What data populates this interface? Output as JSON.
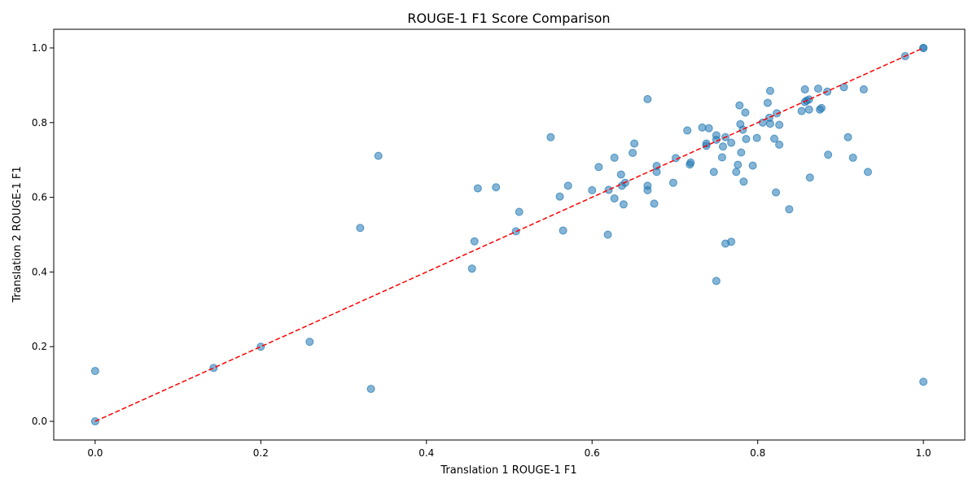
{
  "chart_data": {
    "type": "scatter",
    "title": "ROUGE-1 F1 Score Comparison",
    "xlabel": "Translation 1 ROUGE-1 F1",
    "ylabel": "Translation 2 ROUGE-1 F1",
    "xlim": [
      -0.05,
      1.05
    ],
    "ylim": [
      -0.05,
      1.05
    ],
    "xticks": [
      0.0,
      0.2,
      0.4,
      0.6,
      0.8,
      1.0
    ],
    "yticks": [
      0.0,
      0.2,
      0.4,
      0.6,
      0.8,
      1.0
    ],
    "xtick_labels": [
      "0.0",
      "0.2",
      "0.4",
      "0.6",
      "0.8",
      "1.0"
    ],
    "ytick_labels": [
      "0.0",
      "0.2",
      "0.4",
      "0.6",
      "0.8",
      "1.0"
    ],
    "grid": false,
    "legend": "none",
    "point_color": "#1f77b4",
    "reference_line": {
      "style": "dashed",
      "color": "#ff0000",
      "from": [
        0,
        0
      ],
      "to": [
        1,
        1
      ]
    },
    "points": [
      [
        0.0,
        0.0
      ],
      [
        0.0,
        0.135
      ],
      [
        0.143,
        0.143
      ],
      [
        0.2,
        0.2
      ],
      [
        0.259,
        0.213
      ],
      [
        0.32,
        0.518
      ],
      [
        0.333,
        0.087
      ],
      [
        0.342,
        0.711
      ],
      [
        0.455,
        0.409
      ],
      [
        0.458,
        0.482
      ],
      [
        0.462,
        0.624
      ],
      [
        0.484,
        0.627
      ],
      [
        0.508,
        0.509
      ],
      [
        0.512,
        0.561
      ],
      [
        0.55,
        0.761
      ],
      [
        0.561,
        0.602
      ],
      [
        0.565,
        0.511
      ],
      [
        0.571,
        0.631
      ],
      [
        0.6,
        0.619
      ],
      [
        0.608,
        0.681
      ],
      [
        0.619,
        0.5
      ],
      [
        0.62,
        0.62
      ],
      [
        0.627,
        0.706
      ],
      [
        0.627,
        0.597
      ],
      [
        0.635,
        0.661
      ],
      [
        0.636,
        0.631
      ],
      [
        0.638,
        0.581
      ],
      [
        0.64,
        0.639
      ],
      [
        0.649,
        0.719
      ],
      [
        0.651,
        0.744
      ],
      [
        0.667,
        0.863
      ],
      [
        0.667,
        0.631
      ],
      [
        0.667,
        0.619
      ],
      [
        0.675,
        0.583
      ],
      [
        0.678,
        0.684
      ],
      [
        0.678,
        0.668
      ],
      [
        0.698,
        0.639
      ],
      [
        0.701,
        0.705
      ],
      [
        0.715,
        0.779
      ],
      [
        0.718,
        0.688
      ],
      [
        0.719,
        0.693
      ],
      [
        0.733,
        0.787
      ],
      [
        0.738,
        0.744
      ],
      [
        0.738,
        0.738
      ],
      [
        0.741,
        0.785
      ],
      [
        0.747,
        0.668
      ],
      [
        0.75,
        0.376
      ],
      [
        0.75,
        0.766
      ],
      [
        0.75,
        0.754
      ],
      [
        0.757,
        0.707
      ],
      [
        0.758,
        0.736
      ],
      [
        0.761,
        0.761
      ],
      [
        0.761,
        0.476
      ],
      [
        0.768,
        0.481
      ],
      [
        0.768,
        0.746
      ],
      [
        0.774,
        0.668
      ],
      [
        0.776,
        0.687
      ],
      [
        0.778,
        0.846
      ],
      [
        0.779,
        0.796
      ],
      [
        0.78,
        0.72
      ],
      [
        0.782,
        0.781
      ],
      [
        0.783,
        0.642
      ],
      [
        0.785,
        0.827
      ],
      [
        0.786,
        0.756
      ],
      [
        0.794,
        0.685
      ],
      [
        0.799,
        0.759
      ],
      [
        0.806,
        0.8
      ],
      [
        0.812,
        0.853
      ],
      [
        0.814,
        0.813
      ],
      [
        0.815,
        0.885
      ],
      [
        0.815,
        0.797
      ],
      [
        0.82,
        0.757
      ],
      [
        0.822,
        0.613
      ],
      [
        0.823,
        0.825
      ],
      [
        0.826,
        0.794
      ],
      [
        0.826,
        0.741
      ],
      [
        0.838,
        0.568
      ],
      [
        0.853,
        0.831
      ],
      [
        0.857,
        0.855
      ],
      [
        0.857,
        0.889
      ],
      [
        0.859,
        0.859
      ],
      [
        0.862,
        0.862
      ],
      [
        0.862,
        0.835
      ],
      [
        0.863,
        0.653
      ],
      [
        0.873,
        0.891
      ],
      [
        0.875,
        0.835
      ],
      [
        0.877,
        0.839
      ],
      [
        0.884,
        0.883
      ],
      [
        0.885,
        0.714
      ],
      [
        0.904,
        0.895
      ],
      [
        0.909,
        0.761
      ],
      [
        0.915,
        0.706
      ],
      [
        0.928,
        0.889
      ],
      [
        0.933,
        0.668
      ],
      [
        0.978,
        0.978
      ],
      [
        1.0,
        1.0
      ],
      [
        1.0,
        1.0
      ],
      [
        1.0,
        0.106
      ]
    ]
  }
}
